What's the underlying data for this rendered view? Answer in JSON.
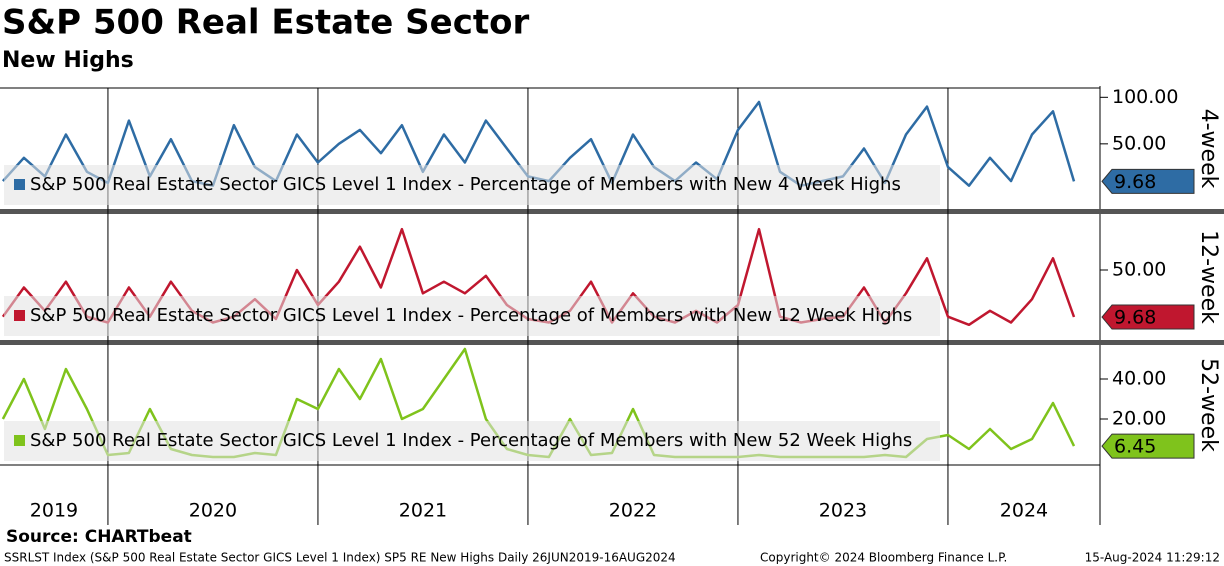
{
  "title": "S&P 500 Real Estate Sector",
  "subtitle": "New Highs",
  "x_axis": {
    "year_labels": [
      "2019",
      "2020",
      "2021",
      "2022",
      "2023",
      "2024"
    ],
    "year_starts": [
      2020,
      2021,
      2022,
      2023,
      2024
    ]
  },
  "source": "Source: CHARTbeat",
  "footer": {
    "left": "SSRLST Index (S&P 500 Real Estate Sector GICS Level 1 Index) SP5 RE New Highs  Daily 26JUN2019-16AUG2024",
    "center": "Copyright© 2024 Bloomberg Finance L.P.",
    "right": "15-Aug-2024 11:29:12"
  },
  "chart_data": [
    {
      "type": "line",
      "panel_label": "4-week",
      "xlim": [
        2019.486,
        2024.724
      ],
      "ylim": [
        -20,
        110
      ],
      "yticks": [
        {
          "value": 50,
          "label": "50.00"
        },
        {
          "value": 100,
          "label": "100.00"
        }
      ],
      "grid": false,
      "x": [
        2019.5,
        2019.6,
        2019.7,
        2019.8,
        2019.9,
        2020.0,
        2020.1,
        2020.2,
        2020.3,
        2020.4,
        2020.5,
        2020.6,
        2020.7,
        2020.8,
        2020.9,
        2021.0,
        2021.1,
        2021.2,
        2021.3,
        2021.4,
        2021.5,
        2021.6,
        2021.7,
        2021.8,
        2021.9,
        2022.0,
        2022.1,
        2022.2,
        2022.3,
        2022.4,
        2022.5,
        2022.6,
        2022.7,
        2022.8,
        2022.9,
        2023.0,
        2023.1,
        2023.2,
        2023.3,
        2023.4,
        2023.5,
        2023.6,
        2023.7,
        2023.8,
        2023.9,
        2024.0,
        2024.1,
        2024.2,
        2024.3,
        2024.4,
        2024.5,
        2024.6
      ],
      "series": [
        {
          "name": "S&P 500 Real Estate Sector GICS Level 1 Index - Percentage of Members with New 4 Week Highs",
          "color": "#2e6ca4",
          "values": [
            10,
            35,
            15,
            60,
            20,
            8,
            75,
            15,
            55,
            10,
            5,
            70,
            25,
            10,
            60,
            30,
            50,
            65,
            40,
            70,
            20,
            60,
            30,
            75,
            45,
            15,
            10,
            35,
            55,
            8,
            60,
            25,
            10,
            30,
            12,
            65,
            95,
            20,
            5,
            10,
            15,
            45,
            8,
            60,
            90,
            25,
            5,
            35,
            10,
            60,
            85,
            9.68
          ]
        }
      ]
    },
    {
      "type": "line",
      "panel_label": "12-week",
      "xlim": [
        2019.486,
        2024.724
      ],
      "ylim": [
        -10,
        98
      ],
      "yticks": [
        {
          "value": 50,
          "label": "50.00"
        }
      ],
      "grid": false,
      "x": [
        2019.5,
        2019.6,
        2019.7,
        2019.8,
        2019.9,
        2020.0,
        2020.1,
        2020.2,
        2020.3,
        2020.4,
        2020.5,
        2020.6,
        2020.7,
        2020.8,
        2020.9,
        2021.0,
        2021.1,
        2021.2,
        2021.3,
        2021.4,
        2021.5,
        2021.6,
        2021.7,
        2021.8,
        2021.9,
        2022.0,
        2022.1,
        2022.2,
        2022.3,
        2022.4,
        2022.5,
        2022.6,
        2022.7,
        2022.8,
        2022.9,
        2023.0,
        2023.1,
        2023.2,
        2023.3,
        2023.4,
        2023.5,
        2023.6,
        2023.7,
        2023.8,
        2023.9,
        2024.0,
        2024.1,
        2024.2,
        2024.3,
        2024.4,
        2024.5,
        2024.6
      ],
      "series": [
        {
          "name": "S&P 500 Real Estate Sector GICS Level 1 Index - Percentage of Members with New 12 Week Highs",
          "color": "#c0172f",
          "values": [
            10,
            35,
            15,
            40,
            10,
            5,
            35,
            10,
            40,
            15,
            5,
            10,
            25,
            8,
            50,
            20,
            40,
            70,
            35,
            85,
            30,
            40,
            30,
            45,
            20,
            8,
            5,
            15,
            40,
            5,
            30,
            10,
            5,
            15,
            5,
            20,
            85,
            10,
            5,
            8,
            10,
            35,
            5,
            30,
            60,
            10,
            3,
            15,
            5,
            25,
            60,
            9.68
          ]
        }
      ]
    },
    {
      "type": "line",
      "panel_label": "52-week",
      "xlim": [
        2019.486,
        2024.724
      ],
      "ylim": [
        -3,
        57
      ],
      "yticks": [
        {
          "value": 20,
          "label": "20.00"
        },
        {
          "value": 40,
          "label": "40.00"
        }
      ],
      "grid": false,
      "x": [
        2019.5,
        2019.6,
        2019.7,
        2019.8,
        2019.9,
        2020.0,
        2020.1,
        2020.2,
        2020.3,
        2020.4,
        2020.5,
        2020.6,
        2020.7,
        2020.8,
        2020.9,
        2021.0,
        2021.1,
        2021.2,
        2021.3,
        2021.4,
        2021.5,
        2021.6,
        2021.7,
        2021.8,
        2021.9,
        2022.0,
        2022.1,
        2022.2,
        2022.3,
        2022.4,
        2022.5,
        2022.6,
        2022.7,
        2022.8,
        2022.9,
        2023.0,
        2023.1,
        2023.2,
        2023.3,
        2023.4,
        2023.5,
        2023.6,
        2023.7,
        2023.8,
        2023.9,
        2024.0,
        2024.1,
        2024.2,
        2024.3,
        2024.4,
        2024.5,
        2024.6
      ],
      "series": [
        {
          "name": "S&P 500 Real Estate Sector GICS Level 1 Index - Percentage of Members with New 52 Week Highs",
          "color": "#7fc31c",
          "values": [
            20,
            40,
            15,
            45,
            25,
            2,
            3,
            25,
            5,
            2,
            1,
            1,
            3,
            2,
            30,
            25,
            45,
            30,
            50,
            20,
            25,
            40,
            55,
            20,
            5,
            2,
            1,
            20,
            2,
            3,
            25,
            2,
            1,
            1,
            1,
            1,
            2,
            1,
            1,
            1,
            1,
            1,
            2,
            1,
            10,
            12,
            5,
            15,
            5,
            10,
            28,
            6.45
          ]
        }
      ]
    }
  ]
}
